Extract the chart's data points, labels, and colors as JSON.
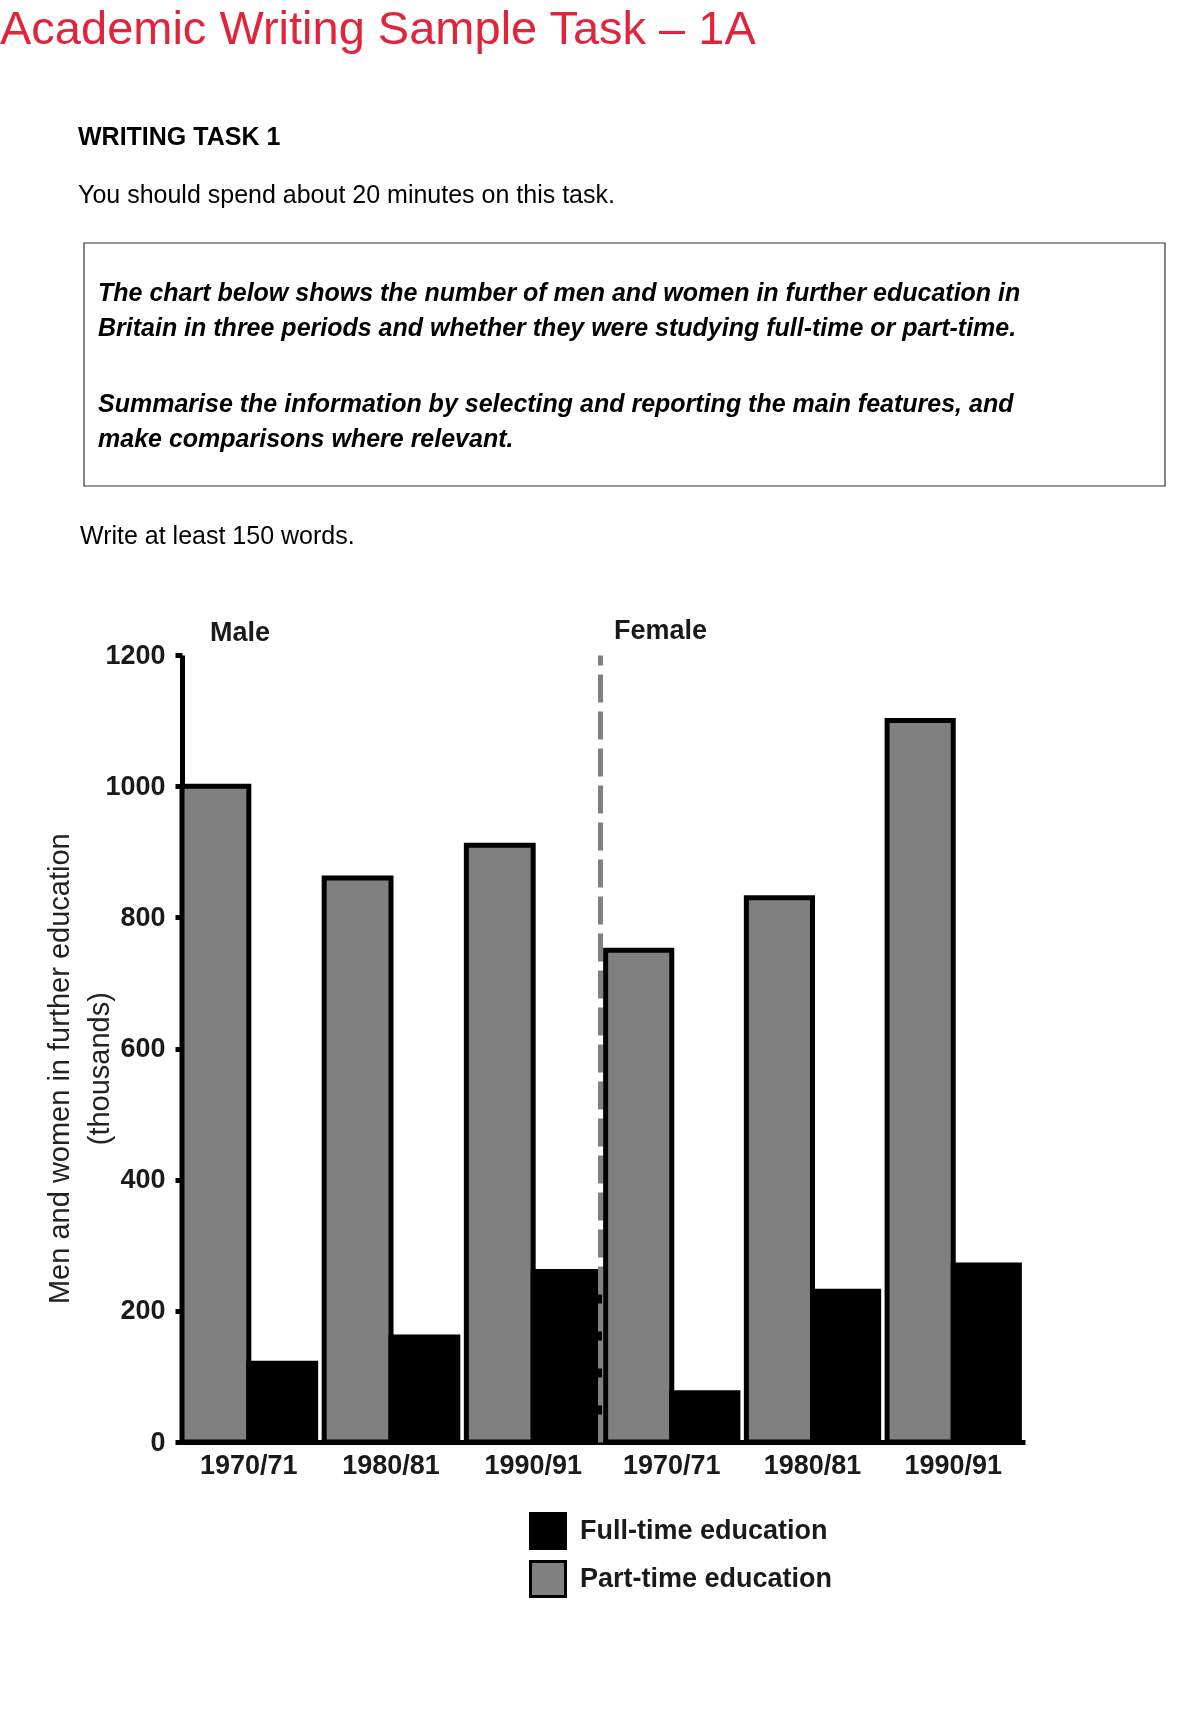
{
  "chart_data": [
    {
      "type": "other",
      "title": "Academic Writing Sample Task – 1A",
      "subtitle": "WRITING TASK 1",
      "annotations": [
        "You should spend about 20 minutes on this task.",
        "The chart below shows the number of men and women in further education in\nBritain in three periods and whether they were studying full-time or part-time.",
        "Summarise the information by selecting and reporting the main features, and\nmake comparisons where relevant.",
        "Write at least 150 words."
      ]
    },
    {
      "type": "bar",
      "title": "Male",
      "ylabel": "Men and women in further education\n(thousands)",
      "categories": [
        "1970/71",
        "1980/81",
        "1990/91"
      ],
      "series": [
        {
          "name": "Part-time education",
          "color": "#808080",
          "values": [
            1000,
            860,
            910
          ]
        },
        {
          "name": "Full-time education",
          "color": "#000000",
          "values": [
            120,
            160,
            260
          ]
        }
      ],
      "ylim": [
        0,
        1200
      ],
      "yticks": [
        0,
        200,
        400,
        600,
        800,
        1000,
        1200
      ],
      "legend": "bottom"
    },
    {
      "type": "bar",
      "title": "Female",
      "categories": [
        "1970/71",
        "1980/81",
        "1990/91"
      ],
      "series": [
        {
          "name": "Part-time education",
          "color": "#808080",
          "values": [
            750,
            830,
            1100
          ]
        },
        {
          "name": "Full-time education",
          "color": "#000000",
          "values": [
            75,
            230,
            270
          ]
        }
      ],
      "ylim": [
        0,
        1200
      ],
      "yticks": [
        0,
        200,
        400,
        600,
        800,
        1000,
        1200
      ],
      "tick_labels": "x"
    }
  ]
}
